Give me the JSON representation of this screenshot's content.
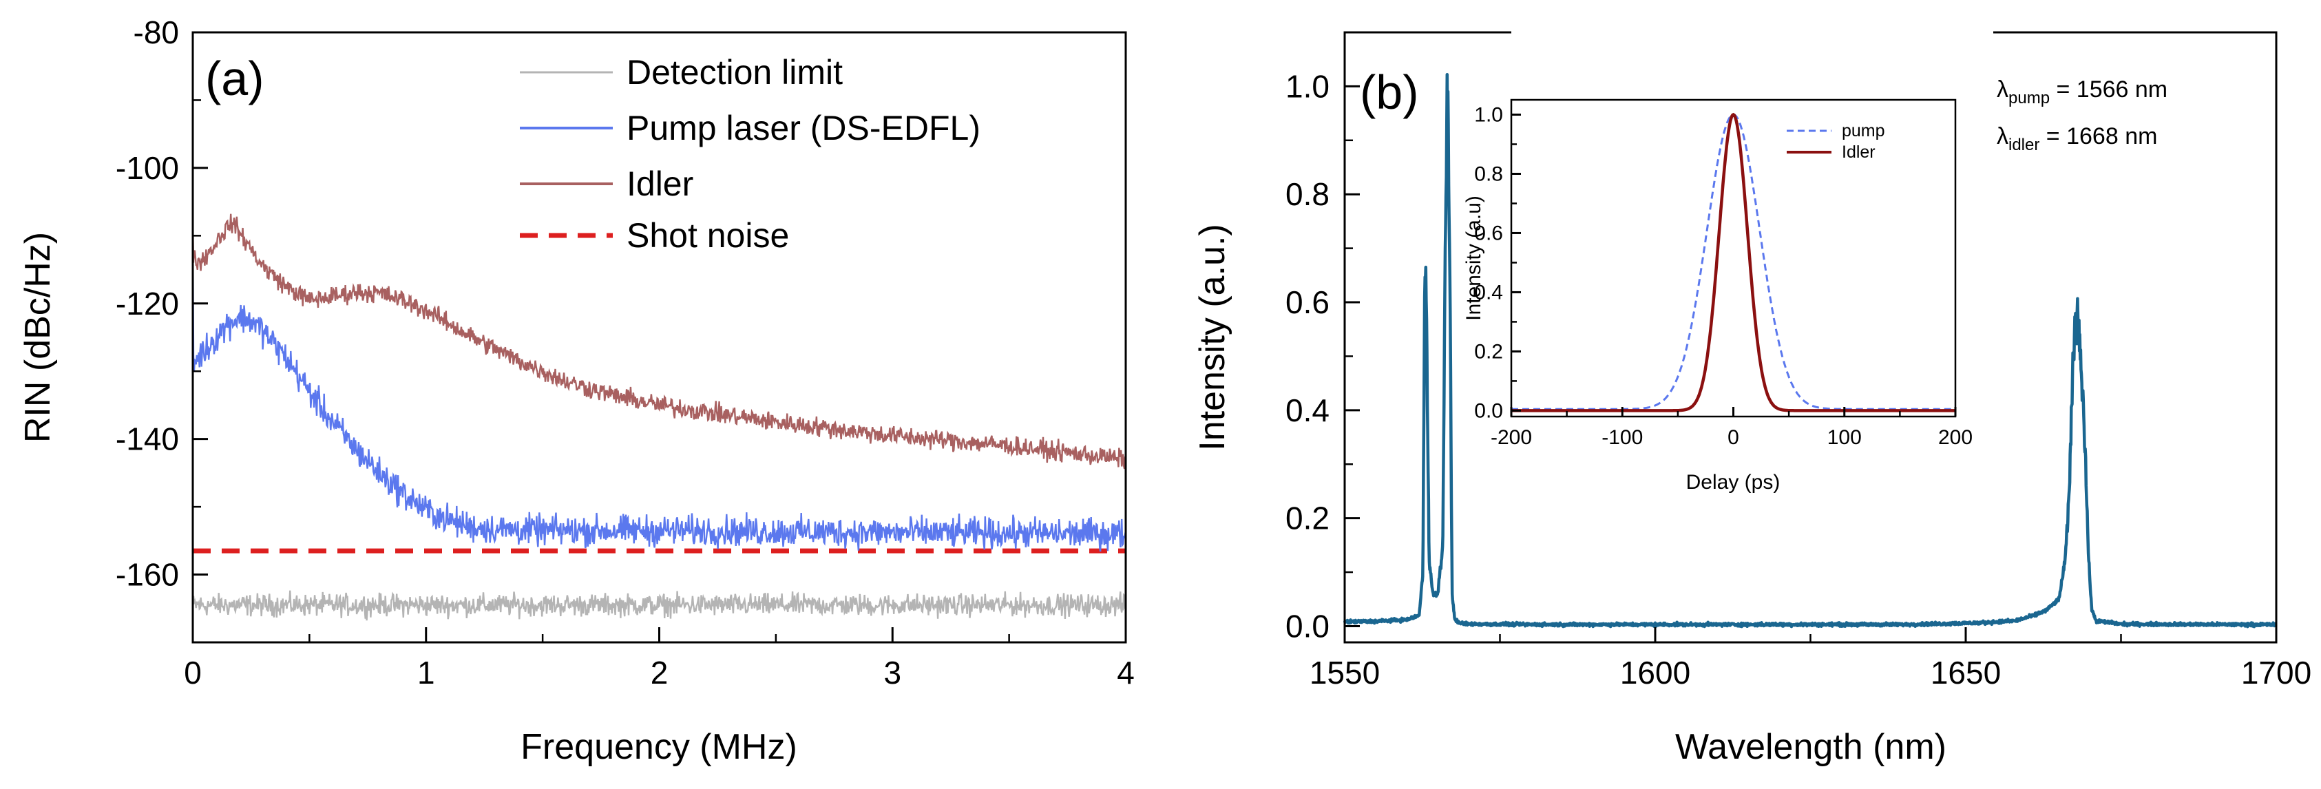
{
  "chart_data": [
    {
      "panel": "(a)",
      "type": "line",
      "xlabel": "Frequency (MHz)",
      "ylabel": "RIN (dBc/Hz)",
      "xlim": [
        0,
        4
      ],
      "ylim": [
        -170,
        -80
      ],
      "xticks": [
        0,
        1,
        2,
        3,
        4
      ],
      "xtick_labels": [
        "0",
        "1",
        "2",
        "3",
        "4"
      ],
      "yticks": [
        -80,
        -100,
        -120,
        -140,
        -160
      ],
      "ytick_labels": [
        "-80",
        "-100",
        "-120",
        "-140",
        "-160"
      ],
      "grid": false,
      "legend_position": "top-right",
      "series": [
        {
          "name": "Detection limit",
          "color": "#b4b4b4",
          "style": "solid",
          "noise": 1.6,
          "x": [
            0,
            0.5,
            1,
            2,
            3,
            4
          ],
          "y": [
            -164.5,
            -164.5,
            -164.5,
            -164.5,
            -164.5,
            -164.5
          ]
        },
        {
          "name": "Pump laser (DS-EDFL)",
          "color": "#5b78ee",
          "style": "solid",
          "noise": 2.2,
          "x": [
            0,
            0.003,
            0.02,
            0.05,
            0.1,
            0.15,
            0.2,
            0.25,
            0.3,
            0.4,
            0.5,
            0.6,
            0.7,
            0.8,
            0.9,
            1.0,
            1.1,
            1.2,
            1.3,
            1.5,
            2.0,
            3.0,
            4.0
          ],
          "y": [
            -110,
            -129,
            -128,
            -127,
            -125,
            -123,
            -122,
            -122.5,
            -124,
            -128,
            -133,
            -137.5,
            -141.5,
            -145,
            -148,
            -150.5,
            -152,
            -153,
            -153.3,
            -153.5,
            -153.5,
            -153.8,
            -154
          ],
          "spike": [
            -110,
            -130
          ]
        },
        {
          "name": "Idler",
          "color": "#a86060",
          "style": "solid",
          "noise": 1.4,
          "x": [
            0,
            0.003,
            0.03,
            0.08,
            0.13,
            0.17,
            0.21,
            0.3,
            0.4,
            0.5,
            0.6,
            0.7,
            0.8,
            0.9,
            1.0,
            1.2,
            1.4,
            1.6,
            1.8,
            2.0,
            2.5,
            3.0,
            3.5,
            4.0
          ],
          "y": [
            -108,
            -113,
            -114,
            -112,
            -109.5,
            -108,
            -110,
            -114.5,
            -117.5,
            -119.5,
            -119,
            -118.3,
            -118.5,
            -119.5,
            -121,
            -125,
            -128.5,
            -131.5,
            -133.5,
            -135,
            -137.5,
            -139.5,
            -141,
            -143
          ],
          "spike": [
            -80,
            -115
          ]
        },
        {
          "name": "Shot noise",
          "color": "#dd1f1f",
          "style": "dashed",
          "noise": 0,
          "x": [
            0,
            4
          ],
          "y": [
            -156.5,
            -156.5
          ]
        }
      ]
    },
    {
      "panel": "(b)",
      "type": "line",
      "xlabel": "Wavelength (nm)",
      "ylabel": "Intensity (a.u.)",
      "xlim": [
        1550,
        1700
      ],
      "ylim": [
        -0.03,
        1.1
      ],
      "xticks": [
        1550,
        1600,
        1650,
        1700
      ],
      "xtick_labels": [
        "1550",
        "1600",
        "1650",
        "1700"
      ],
      "yticks": [
        0.0,
        0.2,
        0.4,
        0.6,
        0.8,
        1.0
      ],
      "ytick_labels": [
        "0.0",
        "0.2",
        "0.4",
        "0.6",
        "0.8",
        "1.0"
      ],
      "grid": false,
      "annotations": [
        "λpump = 1566 nm",
        "λidler = 1668 nm"
      ],
      "series": [
        {
          "name": "Spectrum",
          "color": "#1a6690",
          "style": "solid",
          "x": [
            1550,
            1555,
            1560,
            1562,
            1562.6,
            1562.9,
            1563.2,
            1563.6,
            1564.2,
            1565,
            1565.8,
            1566.3,
            1566.6,
            1567,
            1567.3,
            1567.7,
            1568.3,
            1570,
            1580,
            1600,
            1640,
            1652,
            1658,
            1661,
            1663,
            1665,
            1666,
            1666.7,
            1667.2,
            1667.6,
            1668,
            1668.4,
            1668.8,
            1669.3,
            1669.8,
            1670.3,
            1671,
            1675,
            1690,
            1700
          ],
          "y": [
            0.008,
            0.009,
            0.012,
            0.02,
            0.1,
            0.69,
            0.58,
            0.12,
            0.06,
            0.06,
            0.15,
            0.85,
            1.0,
            0.55,
            0.06,
            0.015,
            0.006,
            0.004,
            0.003,
            0.003,
            0.003,
            0.006,
            0.01,
            0.02,
            0.03,
            0.05,
            0.12,
            0.25,
            0.48,
            0.55,
            0.59,
            0.52,
            0.45,
            0.3,
            0.12,
            0.03,
            0.01,
            0.004,
            0.003,
            0.003
          ]
        }
      ]
    },
    {
      "panel": "(b) inset",
      "type": "line",
      "xlabel": "Delay (ps)",
      "ylabel": "Intensity (a.u)",
      "xlim": [
        -200,
        200
      ],
      "ylim": [
        -0.02,
        1.05
      ],
      "xticks": [
        -200,
        -100,
        0,
        100,
        200
      ],
      "xtick_labels": [
        "-200",
        "-100",
        "0",
        "100",
        "200"
      ],
      "yticks": [
        0.0,
        0.2,
        0.4,
        0.6,
        0.8,
        1.0
      ],
      "ytick_labels": [
        "0.0",
        "0.2",
        "0.4",
        "0.6",
        "0.8",
        "1.0"
      ],
      "legend_position": "top-right",
      "series": [
        {
          "name": "pump",
          "color": "#5b78ee",
          "style": "dashed",
          "shape": "gaussian",
          "center": 0,
          "fwhm": 56,
          "baseline": 0.005
        },
        {
          "name": "Idler",
          "color": "#8b1010",
          "style": "solid",
          "shape": "gaussian",
          "center": 0,
          "fwhm": 30,
          "baseline": 0.0
        }
      ]
    }
  ]
}
